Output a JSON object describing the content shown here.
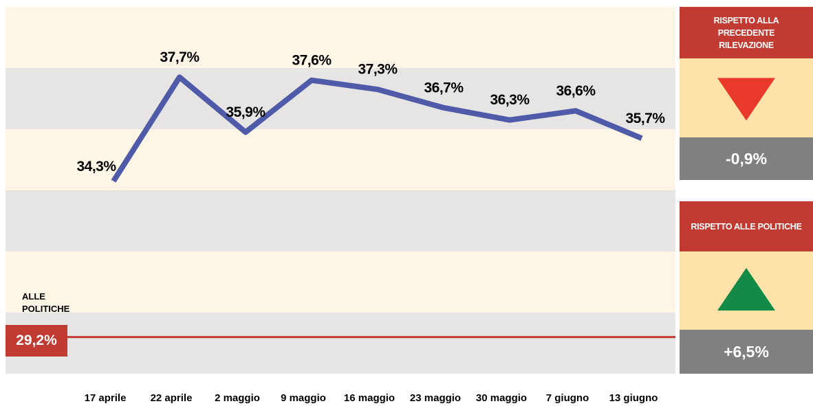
{
  "chart_data": {
    "type": "line",
    "categories": [
      "17 aprile",
      "22 aprile",
      "2 maggio",
      "9 maggio",
      "16 maggio",
      "23 maggio",
      "30 maggio",
      "7 giugno",
      "13 giugno"
    ],
    "values": [
      34.3,
      37.7,
      35.9,
      37.6,
      37.3,
      36.7,
      36.3,
      36.6,
      35.7
    ],
    "value_labels": [
      "34,3%",
      "37,7%",
      "35,9%",
      "37,6%",
      "37,3%",
      "36,7%",
      "36,3%",
      "36,6%",
      "35,7%"
    ],
    "color": "#4f5aa8",
    "ylim": [
      28,
      40
    ],
    "reference": {
      "label": "ALLE POLITICHE",
      "value": 29.2,
      "value_label": "29,2%",
      "color": "#c23b33"
    },
    "panels": [
      {
        "title": "RISPETTO ALLA PRECEDENTE RILEVAZIONE",
        "value": -0.9,
        "value_label": "-0,9%",
        "color": "#e8392a"
      },
      {
        "title": "RISPETTO ALLE POLITICHE",
        "value": 6.5,
        "value_label": "+6,5%",
        "color": "#138a45"
      }
    ]
  }
}
